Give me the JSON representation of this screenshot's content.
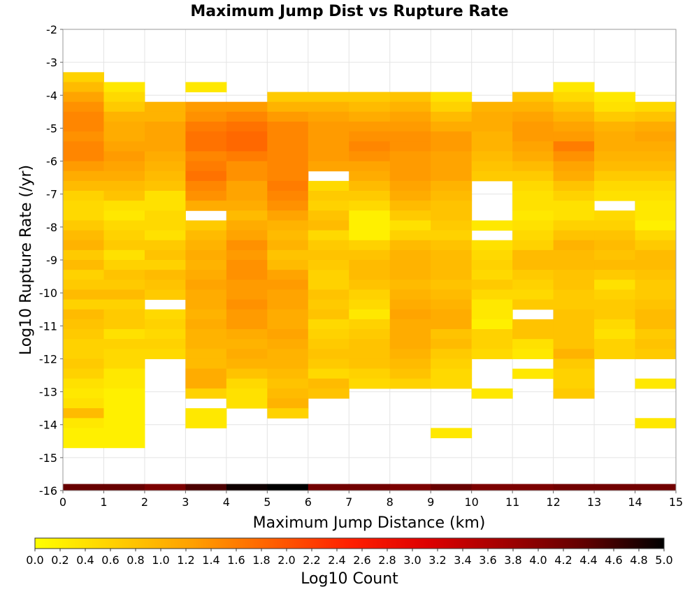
{
  "chart_data": {
    "type": "heatmap",
    "title": "Maximum Jump Dist vs Rupture Rate",
    "xlabel": "Maximum Jump Distance (km)",
    "ylabel": "Log10 Rupture Rate (/yr)",
    "xlim": [
      0,
      15
    ],
    "ylim": [
      -16,
      -2
    ],
    "x_ticks": [
      "0",
      "1",
      "2",
      "3",
      "4",
      "5",
      "6",
      "7",
      "8",
      "9",
      "10",
      "11",
      "12",
      "13",
      "14",
      "15"
    ],
    "y_ticks": [
      "-2",
      "-3",
      "-4",
      "-5",
      "-6",
      "-7",
      "-8",
      "-9",
      "-10",
      "-11",
      "-12",
      "-13",
      "-14",
      "-15",
      "-16"
    ],
    "x_bin_width": 1,
    "y_bin_height": 0.3,
    "grid": true,
    "colorbar": {
      "label": "Log10 Count",
      "range": [
        0.0,
        5.0
      ],
      "ticks": [
        "0.0",
        "0.2",
        "0.4",
        "0.6",
        "0.8",
        "1.0",
        "1.2",
        "1.4",
        "1.6",
        "1.8",
        "2.0",
        "2.2",
        "2.4",
        "2.6",
        "2.8",
        "3.0",
        "3.2",
        "3.4",
        "3.6",
        "3.8",
        "4.0",
        "4.2",
        "4.4",
        "4.6",
        "4.8",
        "5.0"
      ],
      "colors": [
        "#ffff00",
        "#ffd000",
        "#ffa000",
        "#ff6000",
        "#ff2000",
        "#dd0000",
        "#a00000",
        "#600000",
        "#000000"
      ]
    },
    "columns": [
      {
        "x": 0,
        "y_start": -3.3,
        "values": [
          0.6,
          0.9,
          1.2,
          1.4,
          1.5,
          1.5,
          1.4,
          1.5,
          1.5,
          1.3,
          1.1,
          0.9,
          0.6,
          0.5,
          0.5,
          0.7,
          0.9,
          1.0,
          0.7,
          0.9,
          0.6,
          0.7,
          0.9,
          0.6,
          0.9,
          0.8,
          0.7,
          0.6,
          0.6,
          0.7,
          0.6,
          0.4,
          0.3,
          0.4,
          0.9,
          0.3,
          0.2,
          0.2
        ],
        "marginal": 4.3
      },
      {
        "x": 1,
        "y_start": -3.6,
        "values": [
          0.3,
          0.5,
          0.7,
          1.0,
          1.1,
          1.1,
          1.2,
          1.3,
          1.2,
          1.1,
          0.9,
          0.8,
          0.4,
          0.3,
          0.5,
          0.6,
          0.7,
          0.4,
          0.6,
          0.8,
          0.7,
          0.9,
          0.6,
          0.7,
          0.7,
          0.4,
          0.6,
          0.5,
          0.5,
          0.3,
          0.3,
          0.2,
          0.2,
          0.2,
          0.2,
          0.2,
          0.2
        ],
        "marginal": 4.3
      },
      {
        "x": 2,
        "y_start": -4.2,
        "values": [
          1.0,
          1.0,
          1.2,
          1.2,
          1.2,
          1.1,
          1.0,
          0.9,
          0.8,
          0.4,
          0.4,
          0.5,
          0.5,
          0.4,
          0.7,
          0.8,
          0.6,
          0.9,
          0.8,
          0.7,
          null,
          0.5,
          0.6,
          0.5,
          0.6,
          0.5
        ],
        "marginal": 4.1
      },
      {
        "x": 3,
        "y_start": -3.6,
        "values": [
          0.3,
          null,
          1.3,
          1.4,
          1.6,
          1.7,
          1.7,
          1.5,
          1.6,
          1.7,
          1.5,
          1.4,
          1.1,
          null,
          0.7,
          0.9,
          1.0,
          1.1,
          1.0,
          1.1,
          1.2,
          1.1,
          1.1,
          1.0,
          1.1,
          1.0,
          1.0,
          0.9,
          0.9,
          1.1,
          1.1,
          0.6,
          null,
          0.3,
          0.3
        ],
        "marginal": 4.5
      },
      {
        "x": 4,
        "y_start": -4.2,
        "values": [
          1.3,
          1.5,
          1.7,
          1.8,
          1.8,
          1.6,
          1.4,
          1.4,
          1.2,
          1.2,
          1.1,
          0.9,
          1.1,
          1.2,
          1.4,
          1.3,
          1.4,
          1.4,
          1.3,
          1.3,
          1.4,
          1.3,
          1.3,
          1.1,
          1.0,
          1.1,
          1.0,
          0.8,
          0.5,
          0.4,
          0.4
        ],
        "marginal": 4.9
      },
      {
        "x": 5,
        "y_start": -3.9,
        "values": [
          0.7,
          1.0,
          1.3,
          1.5,
          1.5,
          1.5,
          1.5,
          1.5,
          1.5,
          1.6,
          1.5,
          1.4,
          1.2,
          1.0,
          0.9,
          1.0,
          0.8,
          0.9,
          1.2,
          1.3,
          1.2,
          1.2,
          1.1,
          1.1,
          1.2,
          1.1,
          1.0,
          1.0,
          0.9,
          0.8,
          0.9,
          1.0,
          0.6
        ],
        "marginal": 5.0
      },
      {
        "x": 6,
        "y_start": -3.9,
        "values": [
          0.7,
          1.0,
          1.2,
          1.3,
          1.3,
          1.3,
          1.3,
          1.2,
          null,
          0.5,
          0.7,
          0.6,
          0.8,
          0.9,
          0.5,
          0.7,
          0.8,
          0.7,
          0.6,
          0.6,
          0.8,
          0.7,
          0.8,
          0.5,
          0.6,
          0.7,
          0.8,
          0.7,
          0.5,
          0.9,
          0.8
        ],
        "marginal": 4.2
      },
      {
        "x": 7,
        "y_start": -3.9,
        "values": [
          0.7,
          0.9,
          1.1,
          1.3,
          1.4,
          1.5,
          1.4,
          1.2,
          1.1,
          0.9,
          0.7,
          0.5,
          0.2,
          0.2,
          0.2,
          0.6,
          0.8,
          0.9,
          0.9,
          0.8,
          0.6,
          0.5,
          0.3,
          0.6,
          0.7,
          0.8,
          0.8,
          0.8,
          0.6,
          0.5
        ],
        "marginal": 4.2
      },
      {
        "x": 8,
        "y_start": -3.9,
        "values": [
          0.8,
          1.0,
          1.2,
          1.3,
          1.4,
          1.4,
          1.3,
          1.3,
          1.3,
          1.2,
          1.1,
          0.9,
          0.7,
          0.4,
          0.6,
          0.9,
          1.0,
          1.0,
          1.0,
          0.9,
          1.0,
          1.1,
          1.2,
          1.1,
          1.1,
          1.1,
          1.0,
          0.9,
          0.8,
          0.6
        ],
        "marginal": 4.1
      },
      {
        "x": 9,
        "y_start": -3.9,
        "values": [
          0.4,
          0.6,
          0.9,
          1.1,
          1.3,
          1.3,
          1.2,
          1.2,
          1.2,
          1.0,
          0.9,
          0.8,
          0.8,
          0.7,
          0.6,
          0.8,
          0.9,
          0.9,
          0.9,
          0.8,
          0.9,
          1.0,
          1.1,
          1.1,
          0.8,
          0.9,
          0.7,
          0.6,
          0.5,
          0.5,
          null,
          null,
          null,
          null,
          0.3
        ],
        "marginal": 4.3
      },
      {
        "x": 10,
        "y_start": -4.2,
        "values": [
          1.0,
          1.1,
          1.1,
          1.0,
          1.0,
          0.9,
          0.8,
          0.7,
          null,
          null,
          null,
          null,
          0.3,
          null,
          0.4,
          0.5,
          0.6,
          0.5,
          0.7,
          0.5,
          0.3,
          0.3,
          0.2,
          0.6,
          0.6,
          0.5,
          null,
          null,
          null,
          0.3
        ],
        "marginal": 4.1
      },
      {
        "x": 11,
        "y_start": -3.9,
        "values": [
          0.8,
          1.0,
          1.2,
          1.3,
          1.3,
          1.2,
          1.1,
          0.9,
          0.7,
          0.5,
          0.4,
          0.4,
          0.3,
          0.4,
          0.5,
          0.6,
          0.9,
          0.9,
          0.7,
          0.6,
          0.5,
          0.7,
          null,
          0.8,
          0.8,
          0.4,
          0.3,
          null,
          0.3
        ],
        "marginal": 4.1
      },
      {
        "x": 12,
        "y_start": -3.6,
        "values": [
          0.3,
          0.5,
          0.8,
          1.0,
          1.2,
          1.3,
          1.6,
          1.4,
          1.2,
          1.1,
          0.8,
          0.6,
          0.4,
          0.4,
          0.6,
          0.8,
          1.0,
          0.9,
          0.9,
          0.8,
          0.8,
          0.7,
          0.7,
          0.8,
          0.8,
          0.8,
          0.8,
          1.0,
          0.7,
          0.6,
          0.6,
          0.7
        ],
        "marginal": 4.2
      },
      {
        "x": 13,
        "y_start": -3.9,
        "values": [
          0.3,
          0.4,
          0.7,
          1.0,
          1.1,
          1.1,
          1.0,
          0.9,
          0.7,
          0.5,
          0.4,
          null,
          0.5,
          0.6,
          0.8,
          0.9,
          0.8,
          0.9,
          0.7,
          0.4,
          0.6,
          0.7,
          0.7,
          0.5,
          0.4,
          0.6,
          0.6
        ],
        "marginal": 4.2
      },
      {
        "x": 14,
        "y_start": -4.2,
        "values": [
          0.5,
          0.8,
          1.1,
          1.2,
          1.1,
          1.0,
          0.9,
          0.7,
          0.5,
          0.4,
          0.3,
          0.3,
          0.2,
          0.5,
          0.7,
          0.9,
          0.9,
          0.8,
          0.7,
          0.7,
          0.8,
          0.9,
          0.9,
          0.7,
          0.8,
          0.7,
          null,
          null,
          0.3,
          null,
          null,
          null,
          0.3
        ],
        "marginal": 4.2
      }
    ]
  }
}
